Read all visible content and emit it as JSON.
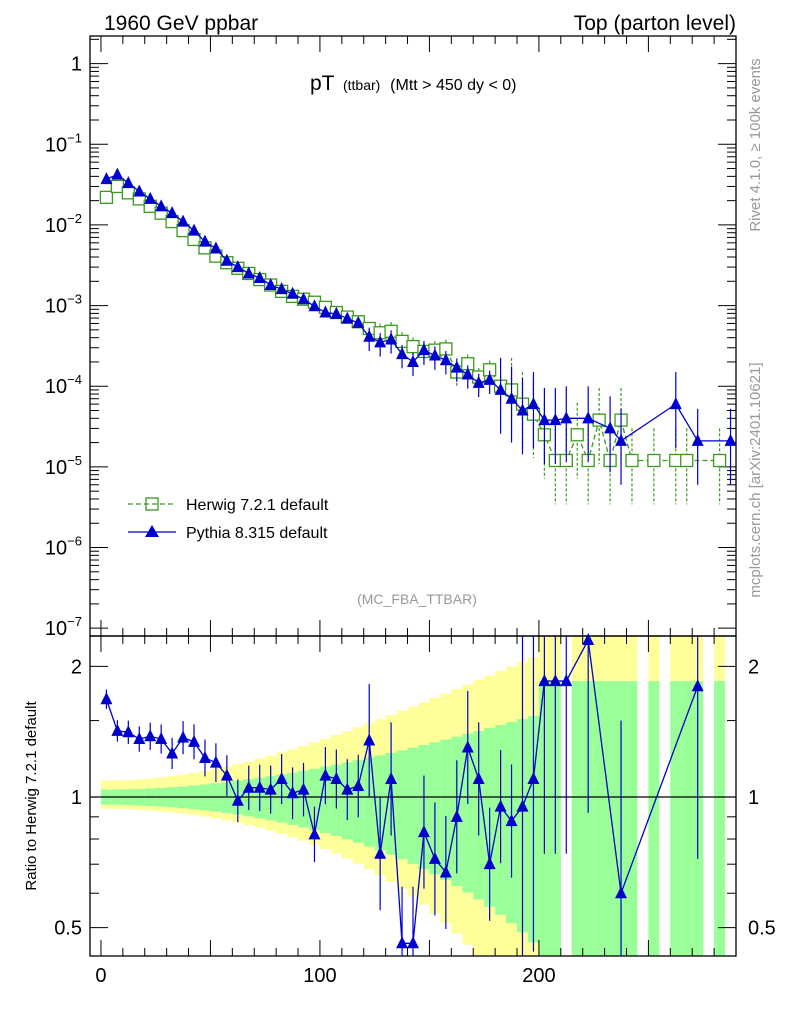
{
  "header": {
    "left": "1960 GeV ppbar",
    "right": "Top (parton level)"
  },
  "side_labels": {
    "right_top": "Rivet 4.1.0, ≥ 100k events",
    "right_bottom": "mcplots.cern.ch [arXiv:2401.10621]"
  },
  "plot_title": {
    "main": "pT",
    "sub": "(ttbar)",
    "cut": "(Mtt > 450 dy < 0)"
  },
  "watermark": "(MC_FBA_TTBAR)",
  "ratio_ylabel": "Ratio to Herwig 7.2.1 default",
  "colors": {
    "herwig": "#3a9a1a",
    "pythia": "#0000cc",
    "band_outer": "#ffff99",
    "band_inner": "#99ff99"
  },
  "chart_data": [
    {
      "type": "scatter",
      "panel": "main",
      "yscale": "log",
      "xlim": [
        -5,
        290
      ],
      "ylim": [
        8e-08,
        2.2
      ],
      "x_ticks": [
        "0",
        "100",
        "200"
      ],
      "y_ticks": [
        {
          "base": "1",
          "exp": ""
        },
        {
          "base": "10",
          "exp": "−1"
        },
        {
          "base": "10",
          "exp": "−2"
        },
        {
          "base": "10",
          "exp": "−3"
        },
        {
          "base": "10",
          "exp": "−4"
        },
        {
          "base": "10",
          "exp": "−5"
        },
        {
          "base": "10",
          "exp": "−6"
        },
        {
          "base": "10",
          "exp": "−7"
        }
      ],
      "legend": [
        "Herwig 7.2.1 default",
        "Pythia 8.315 default"
      ],
      "legend_position": "bottom-left",
      "series": [
        {
          "name": "Herwig 7.2.1 default",
          "marker": "open-square",
          "style": "dashed",
          "points": [
            [
              2.5,
              0.022
            ],
            [
              7.5,
              0.03
            ],
            [
              12.5,
              0.025
            ],
            [
              17.5,
              0.021
            ],
            [
              22.5,
              0.017
            ],
            [
              27.5,
              0.014
            ],
            [
              32.5,
              0.011
            ],
            [
              37.5,
              0.0085
            ],
            [
              42.5,
              0.0066
            ],
            [
              47.5,
              0.0052
            ],
            [
              52.5,
              0.0041
            ],
            [
              57.5,
              0.0034
            ],
            [
              62.5,
              0.0029
            ],
            [
              67.5,
              0.0025
            ],
            [
              72.5,
              0.0021
            ],
            [
              77.5,
              0.0018
            ],
            [
              82.5,
              0.0015
            ],
            [
              87.5,
              0.0013
            ],
            [
              92.5,
              0.0012
            ],
            [
              97.5,
              0.0011
            ],
            [
              102.5,
              0.00095
            ],
            [
              107.5,
              0.00082
            ],
            [
              112.5,
              0.00072
            ],
            [
              117.5,
              0.00063
            ],
            [
              122.5,
              0.00052
            ],
            [
              127.5,
              0.00046
            ],
            [
              132.5,
              0.00048
            ],
            [
              137.5,
              0.00036
            ],
            [
              142.5,
              0.00031
            ],
            [
              147.5,
              0.00027
            ],
            [
              152.5,
              0.00028
            ],
            [
              157.5,
              0.00029
            ],
            [
              162.5,
              0.00015
            ],
            [
              167.5,
              0.00019
            ],
            [
              172.5,
              0.00013
            ],
            [
              177.5,
              0.00016
            ],
            [
              182.5,
              0.0001
            ],
            [
              187.5,
              9e-05
            ],
            [
              192.5,
              6e-05
            ],
            [
              197.5,
              4.5e-05
            ],
            [
              202.5,
              2.5e-05
            ],
            [
              207.5,
              1.2e-05
            ],
            [
              212.5,
              1.2e-05
            ],
            [
              217.5,
              2.5e-05
            ],
            [
              222.5,
              1.2e-05
            ],
            [
              227.5,
              3.8e-05
            ],
            [
              232.5,
              1.2e-05
            ],
            [
              237.5,
              3.8e-05
            ],
            [
              242.5,
              1.2e-05
            ],
            [
              252.5,
              1.2e-05
            ],
            [
              262.5,
              1.2e-05
            ],
            [
              267.5,
              1.2e-05
            ],
            [
              282.5,
              1.2e-05
            ]
          ]
        },
        {
          "name": "Pythia 8.315 default",
          "marker": "filled-triangle",
          "style": "solid",
          "points": [
            [
              2.5,
              0.037
            ],
            [
              7.5,
              0.042
            ],
            [
              12.5,
              0.033
            ],
            [
              17.5,
              0.026
            ],
            [
              22.5,
              0.021
            ],
            [
              27.5,
              0.017
            ],
            [
              32.5,
              0.014
            ],
            [
              37.5,
              0.011
            ],
            [
              42.5,
              0.0085
            ],
            [
              47.5,
              0.0062
            ],
            [
              52.5,
              0.0051
            ],
            [
              57.5,
              0.0036
            ],
            [
              62.5,
              0.003
            ],
            [
              67.5,
              0.0025
            ],
            [
              72.5,
              0.0022
            ],
            [
              77.5,
              0.0018
            ],
            [
              82.5,
              0.0016
            ],
            [
              87.5,
              0.0014
            ],
            [
              92.5,
              0.0012
            ],
            [
              97.5,
              0.00098
            ],
            [
              102.5,
              0.00082
            ],
            [
              107.5,
              0.00079
            ],
            [
              112.5,
              0.00069
            ],
            [
              117.5,
              0.00061
            ],
            [
              122.5,
              0.00041
            ],
            [
              127.5,
              0.00035
            ],
            [
              132.5,
              0.00038
            ],
            [
              137.5,
              0.00025
            ],
            [
              142.5,
              0.0002
            ],
            [
              147.5,
              0.00028
            ],
            [
              152.5,
              0.00024
            ],
            [
              157.5,
              0.00021
            ],
            [
              162.5,
              0.00017
            ],
            [
              167.5,
              0.00014
            ],
            [
              172.5,
              0.00011
            ],
            [
              177.5,
              0.00012
            ],
            [
              182.5,
              9e-05
            ],
            [
              187.5,
              7e-05
            ],
            [
              192.5,
              5e-05
            ],
            [
              197.5,
              6e-05
            ],
            [
              202.5,
              3.8e-05
            ],
            [
              207.5,
              3.8e-05
            ],
            [
              212.5,
              4e-05
            ],
            [
              222.5,
              4e-05
            ],
            [
              232.5,
              3e-05
            ],
            [
              237.5,
              2.1e-05
            ],
            [
              262.5,
              6e-05
            ],
            [
              272.5,
              2.1e-05
            ],
            [
              287.5,
              2.1e-05
            ]
          ]
        }
      ]
    },
    {
      "type": "line",
      "panel": "ratio",
      "ylabel": "Ratio to Herwig 7.2.1 default",
      "yscale": "log",
      "xlim": [
        -5,
        290
      ],
      "ylim": [
        0.43,
        2.35
      ],
      "y_ticks": [
        "2",
        "1",
        "0.5"
      ],
      "reference": 1.0,
      "bands": [
        {
          "x": [
            0,
            200
          ],
          "inner": [
            0.04,
            0.55
          ],
          "outer": [
            0.06,
            0.75
          ]
        },
        {
          "x": [
            200,
            230
          ],
          "inner": [
            0.6,
            1.0
          ],
          "outer": [
            0.8,
            1.0
          ]
        }
      ],
      "series": [
        {
          "name": "Pythia 8.315 default",
          "values": [
            [
              2.5,
              1.68
            ],
            [
              7.5,
              1.42
            ],
            [
              12.5,
              1.41
            ],
            [
              17.5,
              1.36
            ],
            [
              22.5,
              1.38
            ],
            [
              27.5,
              1.36
            ],
            [
              32.5,
              1.26
            ],
            [
              37.5,
              1.37
            ],
            [
              42.5,
              1.34
            ],
            [
              47.5,
              1.23
            ],
            [
              52.5,
              1.2
            ],
            [
              57.5,
              1.12
            ],
            [
              62.5,
              0.98
            ],
            [
              67.5,
              1.05
            ],
            [
              72.5,
              1.05
            ],
            [
              77.5,
              1.04
            ],
            [
              82.5,
              1.1
            ],
            [
              87.5,
              1.02
            ],
            [
              92.5,
              1.04
            ],
            [
              97.5,
              0.82
            ],
            [
              102.5,
              1.12
            ],
            [
              107.5,
              1.1
            ],
            [
              112.5,
              1.04
            ],
            [
              117.5,
              1.06
            ],
            [
              122.5,
              1.35
            ],
            [
              127.5,
              0.74
            ],
            [
              132.5,
              1.1
            ],
            [
              137.5,
              0.46
            ],
            [
              142.5,
              0.46
            ],
            [
              147.5,
              0.83
            ],
            [
              152.5,
              0.72
            ],
            [
              157.5,
              0.67
            ],
            [
              162.5,
              0.9
            ],
            [
              167.5,
              1.3
            ],
            [
              172.5,
              1.1
            ],
            [
              177.5,
              0.7
            ],
            [
              182.5,
              0.95
            ],
            [
              187.5,
              0.88
            ],
            [
              192.5,
              0.95
            ],
            [
              197.5,
              1.1
            ],
            [
              202.5,
              1.85
            ],
            [
              207.5,
              1.85
            ],
            [
              212.5,
              1.85
            ],
            [
              222.5,
              2.3
            ],
            [
              237.5,
              0.6
            ],
            [
              272.5,
              1.8
            ]
          ]
        }
      ]
    }
  ]
}
